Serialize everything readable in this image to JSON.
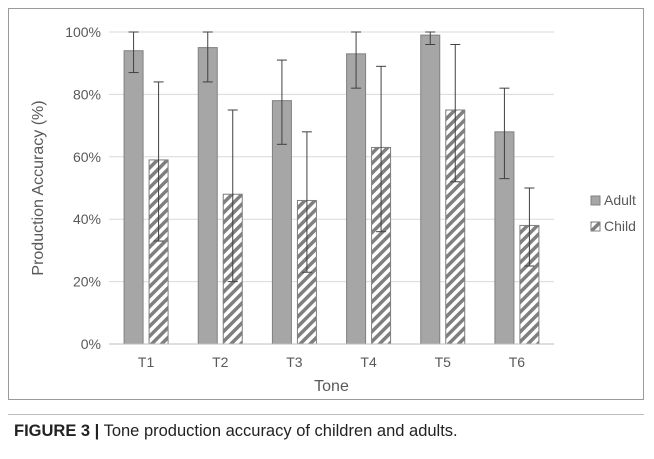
{
  "figure": {
    "label": "FIGURE 3 |",
    "text": " Tone production accuracy of children and adults."
  },
  "colors": {
    "adult": "#a6a6a6",
    "adult_edge": "#808080",
    "child_stripe": "#7f7f7f",
    "grid": "#d9d9d9",
    "axis": "#bfbfbf",
    "text": "#595959",
    "error_bar": "#404040"
  },
  "chart_data": {
    "type": "bar",
    "title": "",
    "xlabel": "Tone",
    "ylabel": "Production Accuracy (%)",
    "ylim": [
      0,
      100
    ],
    "yticks": [
      0,
      20,
      40,
      60,
      80,
      100
    ],
    "ytick_labels": [
      "0%",
      "20%",
      "40%",
      "60%",
      "80%",
      "100%"
    ],
    "categories": [
      "T1",
      "T2",
      "T3",
      "T4",
      "T5",
      "T6"
    ],
    "series": [
      {
        "name": "Adult",
        "pattern": "solid",
        "values": [
          94,
          95,
          78,
          93,
          99,
          68
        ],
        "error_low": [
          87,
          84,
          64,
          82,
          96,
          53
        ],
        "error_high": [
          100,
          100,
          91,
          100,
          100,
          82
        ]
      },
      {
        "name": "Child",
        "pattern": "diagonal-stripes",
        "values": [
          59,
          48,
          46,
          63,
          75,
          38
        ],
        "error_low": [
          33,
          20,
          23,
          36,
          52,
          25
        ],
        "error_high": [
          84,
          75,
          68,
          89,
          96,
          50
        ]
      }
    ],
    "legend_position": "right",
    "grid": true
  }
}
